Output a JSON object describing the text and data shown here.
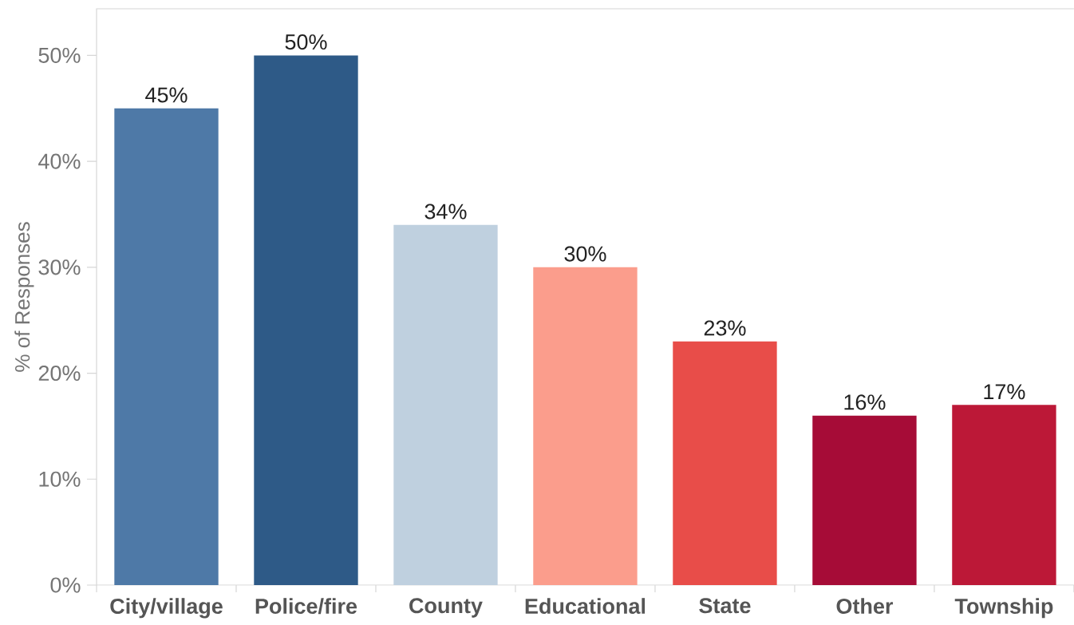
{
  "chart_data": {
    "type": "bar",
    "ylabel": "% of Responses",
    "categories": [
      "City/village",
      "Police/fire",
      "County",
      "Educational",
      "State",
      "Other",
      "Township"
    ],
    "values": [
      45,
      50,
      34,
      30,
      23,
      16,
      17
    ],
    "colors": [
      "#4e79a7",
      "#2e5a87",
      "#bfd0df",
      "#fb9d8c",
      "#e84d49",
      "#a60c37",
      "#bc1837"
    ],
    "value_labels": [
      "45%",
      "50%",
      "34%",
      "30%",
      "23%",
      "16%",
      "17%"
    ],
    "ylim": [
      0,
      54.4
    ],
    "yticks": [
      {
        "value": 0,
        "label": "0%"
      },
      {
        "value": 10,
        "label": "10%"
      },
      {
        "value": 20,
        "label": "20%"
      },
      {
        "value": 30,
        "label": "30%"
      },
      {
        "value": 40,
        "label": "40%"
      },
      {
        "value": 50,
        "label": "50%"
      }
    ]
  }
}
